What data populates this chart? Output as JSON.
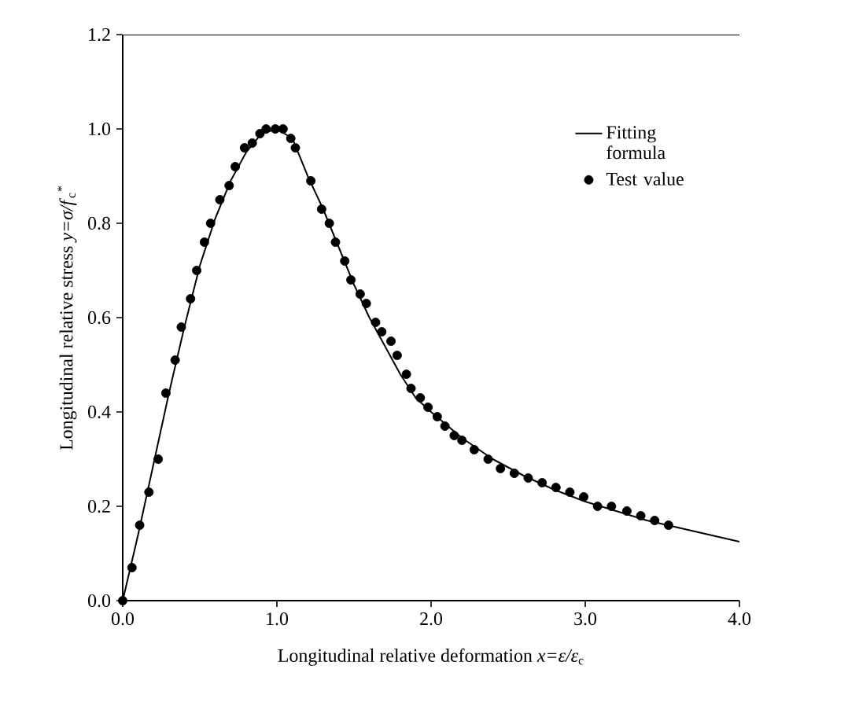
{
  "chart_data": {
    "type": "scatter",
    "xlabel": "Longitudinal relative deformation *x=ε/ε*$_{c}$",
    "ylabel": "Longitudinal relative stress *y=σ/f*$_{c}$$^{*}$",
    "xlim": [
      0,
      4
    ],
    "ylim": [
      0,
      1.2
    ],
    "xticks": [
      {
        "value": 0,
        "label": "0.0"
      },
      {
        "value": 1,
        "label": "1.0"
      },
      {
        "value": 2,
        "label": "2.0"
      },
      {
        "value": 3,
        "label": "3.0"
      },
      {
        "value": 4,
        "label": "4.0"
      }
    ],
    "yticks": [
      {
        "value": 0,
        "label": "0.0"
      },
      0.2,
      0.4,
      0.6,
      0.8,
      {
        "value": 1.0,
        "label": "1.0"
      },
      1.2
    ],
    "legend": "top right",
    "grid": false,
    "series": [
      {
        "name": "Fitting formula",
        "type": "line",
        "marker": "none",
        "line_style": "solid",
        "color": "#000000",
        "x": [
          0,
          0.1,
          0.2,
          0.3,
          0.4,
          0.5,
          0.6,
          0.7,
          0.8,
          0.9,
          1.0,
          1.1,
          1.2,
          1.3,
          1.4,
          1.5,
          1.6,
          1.7,
          1.8,
          1.9,
          2.0,
          2.2,
          2.4,
          2.6,
          2.8,
          3.0,
          3.2,
          3.4,
          3.6,
          3.8,
          4.0
        ],
        "values": [
          0,
          0.14,
          0.29,
          0.44,
          0.58,
          0.71,
          0.81,
          0.89,
          0.95,
          0.99,
          1.0,
          0.98,
          0.9,
          0.83,
          0.75,
          0.67,
          0.6,
          0.54,
          0.48,
          0.43,
          0.4,
          0.345,
          0.3,
          0.265,
          0.235,
          0.21,
          0.19,
          0.17,
          0.155,
          0.14,
          0.125
        ]
      },
      {
        "name": "Test value",
        "marker": "circle",
        "color": "#000000",
        "x": [
          0,
          0.06,
          0.11,
          0.17,
          0.23,
          0.28,
          0.34,
          0.38,
          0.44,
          0.48,
          0.53,
          0.57,
          0.63,
          0.69,
          0.73,
          0.79,
          0.84,
          0.89,
          0.93,
          0.99,
          1.04,
          1.09,
          1.12,
          1.22,
          1.29,
          1.34,
          1.38,
          1.44,
          1.48,
          1.54,
          1.58,
          1.64,
          1.68,
          1.74,
          1.78,
          1.84,
          1.87,
          1.93,
          1.98,
          2.04,
          2.09,
          2.15,
          2.2,
          2.28,
          2.37,
          2.45,
          2.54,
          2.63,
          2.72,
          2.81,
          2.9,
          2.99,
          3.08,
          3.17,
          3.27,
          3.36,
          3.45,
          3.54
        ],
        "values": [
          0,
          0.07,
          0.16,
          0.23,
          0.3,
          0.44,
          0.51,
          0.58,
          0.64,
          0.7,
          0.76,
          0.8,
          0.85,
          0.88,
          0.92,
          0.96,
          0.97,
          0.99,
          1.0,
          1.0,
          1.0,
          0.98,
          0.96,
          0.89,
          0.83,
          0.8,
          0.76,
          0.72,
          0.68,
          0.65,
          0.63,
          0.59,
          0.57,
          0.55,
          0.52,
          0.48,
          0.45,
          0.43,
          0.41,
          0.39,
          0.37,
          0.35,
          0.34,
          0.32,
          0.3,
          0.28,
          0.27,
          0.26,
          0.25,
          0.24,
          0.23,
          0.22,
          0.2,
          0.2,
          0.19,
          0.18,
          0.17,
          0.16
        ]
      }
    ]
  }
}
